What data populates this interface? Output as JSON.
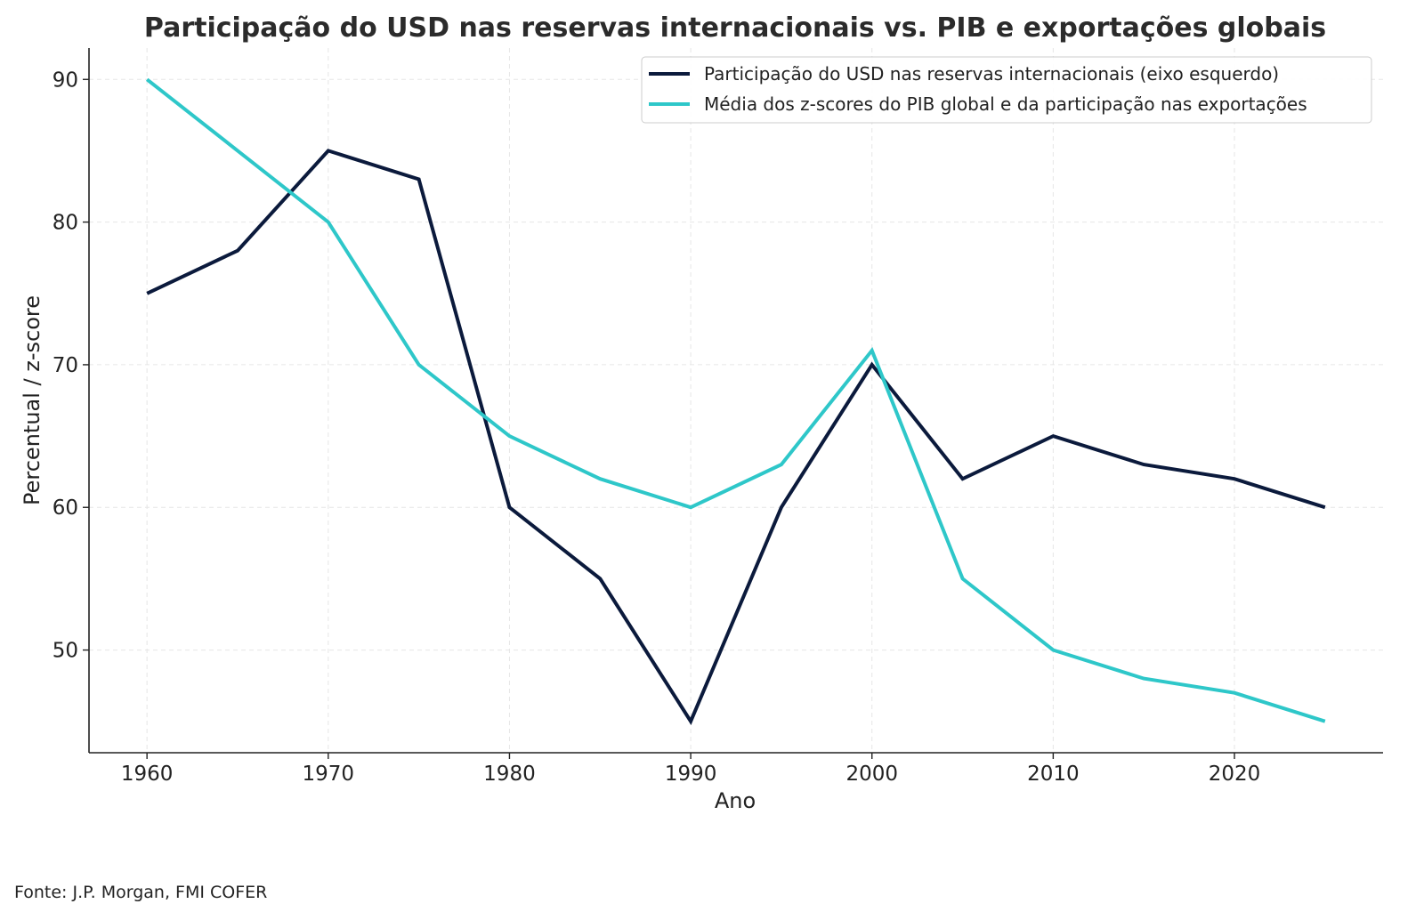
{
  "source": "Fonte: J.P. Morgan, FMI COFER",
  "colors": {
    "usd": "#0b1a3c",
    "gdp": "#2ec7c9",
    "grid": "#e6e6e6",
    "axis": "#222222"
  },
  "chart_data": {
    "type": "line",
    "title": "Participação do USD nas reservas internacionais vs. PIB e exportações globais",
    "xlabel": "Ano",
    "ylabel": "Percentual / z-score",
    "xlim": [
      1956.8,
      2028.2
    ],
    "ylim": [
      42.8,
      92.2
    ],
    "x_ticks": [
      1960,
      1970,
      1980,
      1990,
      2000,
      2010,
      2020
    ],
    "y_ticks": [
      50,
      60,
      70,
      80,
      90
    ],
    "grid": true,
    "legend_position": "top-right",
    "x": [
      1960,
      1965,
      1970,
      1975,
      1980,
      1985,
      1990,
      1995,
      2000,
      2005,
      2010,
      2015,
      2020,
      2025
    ],
    "series": [
      {
        "name": "Participação do USD nas reservas internacionais (eixo esquerdo)",
        "color": "#0b1a3c",
        "values": [
          75,
          78,
          85,
          83,
          60,
          55,
          45,
          60,
          70,
          62,
          65,
          63,
          62,
          60
        ]
      },
      {
        "name": "Média dos z-scores do PIB global e da participação nas exportações",
        "color": "#2ec7c9",
        "values": [
          90,
          85,
          80,
          70,
          65,
          62,
          60,
          63,
          71,
          55,
          50,
          48,
          47,
          45
        ]
      }
    ]
  }
}
